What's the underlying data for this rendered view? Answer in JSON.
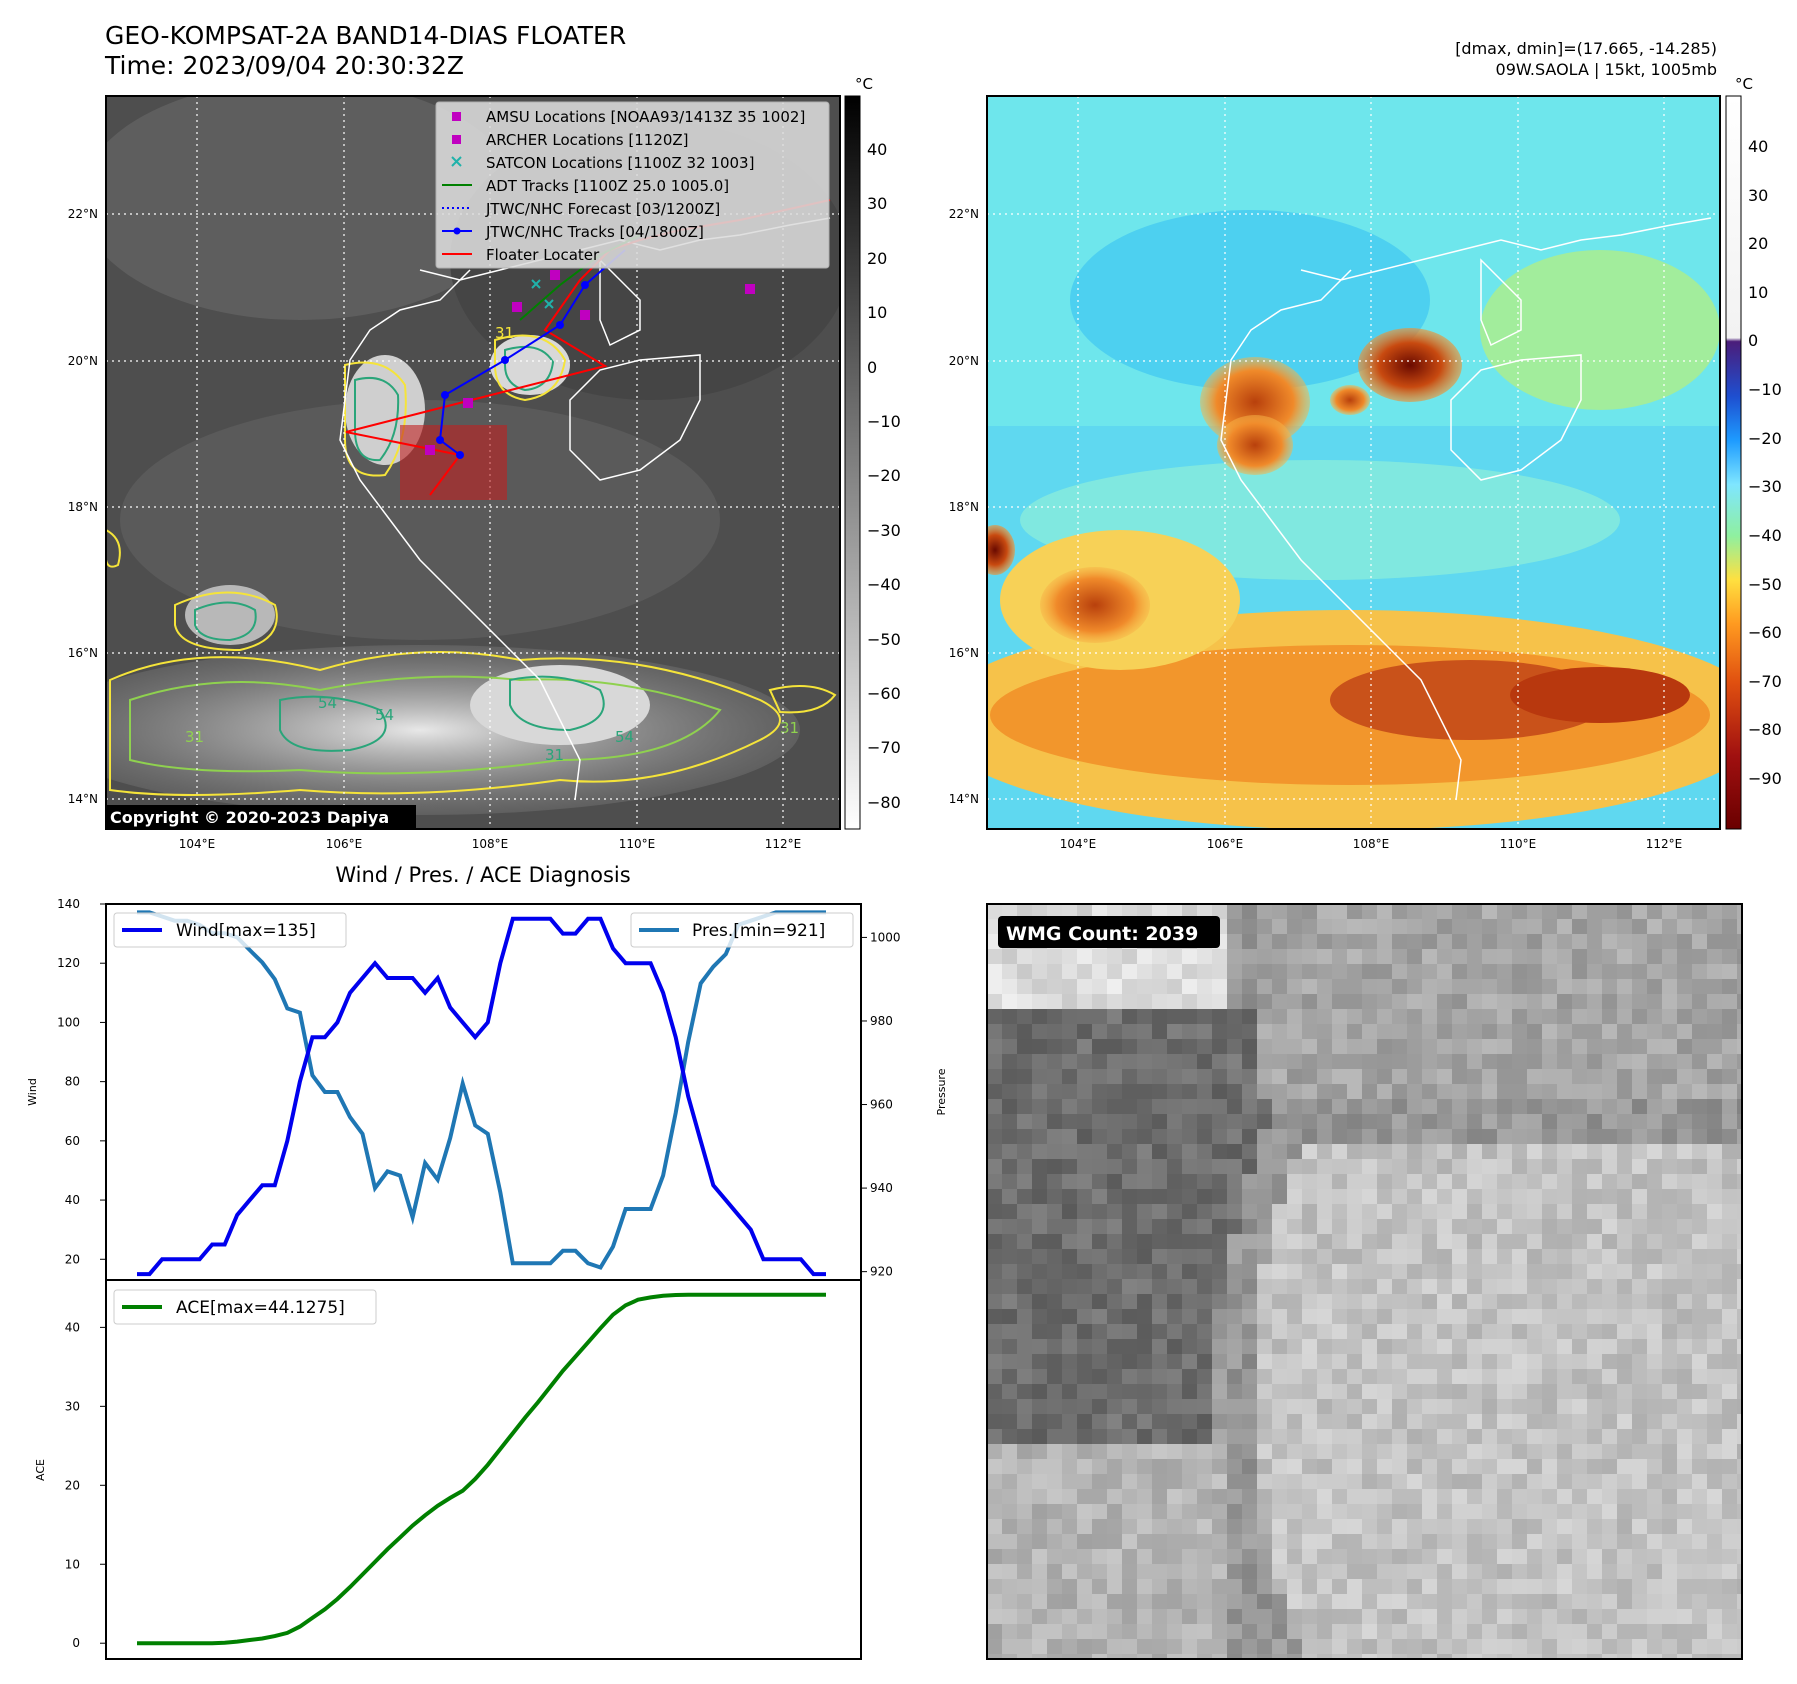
{
  "header": {
    "title": "GEO-KOMPSAT-2A BAND14-DIAS FLOATER",
    "time": "Time: 2023/09/04 20:30:32Z",
    "dmax_dmin": "[dmax, dmin]=(17.665, -14.285)",
    "storm": "09W.SAOLA | 15kt, 1005mb"
  },
  "map_panel": {
    "lat_labels": [
      "22°N",
      "20°N",
      "18°N",
      "16°N",
      "14°N"
    ],
    "lon_labels": [
      "104°E",
      "106°E",
      "108°E",
      "110°E",
      "112°E"
    ],
    "copyright": "Copyright © 2020-2023 Dapiya",
    "colorbar_unit": "°C",
    "colorbar_ticks": [
      "40",
      "30",
      "20",
      "10",
      "0",
      "−10",
      "−20",
      "−30",
      "−40",
      "−50",
      "−60",
      "−70",
      "−80"
    ],
    "contour_labels": [
      "54",
      "54",
      "54",
      "31",
      "31",
      "31",
      "31"
    ],
    "legend": [
      {
        "label": "AMSU Locations [NOAA93/1413Z 35 1002]",
        "marker": "square",
        "color": "#c000c0"
      },
      {
        "label": "ARCHER Locations [1120Z]",
        "marker": "square",
        "color": "#c000c0"
      },
      {
        "label": "SATCON Locations [1100Z 32 1003]",
        "marker": "x",
        "color": "#20b2aa"
      },
      {
        "label": "ADT Tracks [1100Z 25.0 1005.0]",
        "marker": "line",
        "color": "#008000"
      },
      {
        "label": "JTWC/NHC Forecast [03/1200Z]",
        "marker": "dotted",
        "color": "#0000ff"
      },
      {
        "label": "JTWC/NHC Tracks [04/1800Z]",
        "marker": "line-dot",
        "color": "#0000ff"
      },
      {
        "label": "Floater Locater",
        "marker": "line",
        "color": "#ff0000"
      }
    ]
  },
  "color_panel": {
    "lat_labels": [
      "22°N",
      "20°N",
      "18°N",
      "16°N",
      "14°N"
    ],
    "lon_labels": [
      "104°E",
      "106°E",
      "108°E",
      "110°E",
      "112°E"
    ],
    "colorbar_unit": "°C",
    "colorbar_ticks": [
      "40",
      "30",
      "20",
      "10",
      "0",
      "−10",
      "−20",
      "−30",
      "−40",
      "−50",
      "−60",
      "−70",
      "−80",
      "−90"
    ]
  },
  "diagnosis": {
    "title": "Wind / Pres. / ACE Diagnosis",
    "wind_ylabel": "Wind",
    "pres_ylabel": "Pressure",
    "ace_ylabel": "ACE",
    "wind_legend": "Wind[max=135]",
    "pres_legend": "Pres.[min=921]",
    "ace_legend": "ACE[max=44.1275]",
    "wind_ticks": [
      "140",
      "120",
      "100",
      "80",
      "60",
      "40",
      "20"
    ],
    "pres_ticks": [
      "1000",
      "980",
      "960",
      "940",
      "920"
    ],
    "ace_ticks": [
      "40",
      "30",
      "20",
      "10",
      "0"
    ]
  },
  "wmg_panel": {
    "label": "WMG Count: 2039"
  },
  "chart_data": [
    {
      "type": "line",
      "name": "wind-pressure",
      "ylim": [
        13,
        140
      ],
      "y2lim": [
        918,
        1008
      ],
      "series": [
        {
          "name": "Wind[max=135]",
          "color": "#0000ee",
          "values": [
            15,
            15,
            20,
            20,
            20,
            20,
            25,
            25,
            35,
            40,
            45,
            45,
            60,
            80,
            95,
            95,
            100,
            110,
            115,
            120,
            115,
            115,
            115,
            110,
            115,
            105,
            100,
            95,
            100,
            120,
            135,
            135,
            135,
            135,
            130,
            130,
            135,
            135,
            125,
            120,
            120,
            120,
            110,
            95,
            75,
            60,
            45,
            40,
            35,
            30,
            20,
            20,
            20,
            20,
            15,
            15
          ]
        },
        {
          "name": "Pres.[min=921]",
          "color": "#1f77b4",
          "values": [
            1006,
            1006,
            1005,
            1004,
            1004,
            1003,
            1001,
            1001,
            1000,
            997,
            994,
            990,
            983,
            982,
            967,
            963,
            963,
            957,
            953,
            940,
            944,
            943,
            933,
            946,
            942,
            952,
            965,
            955,
            953,
            939,
            922,
            922,
            922,
            922,
            925,
            925,
            922,
            921,
            926,
            935,
            935,
            935,
            943,
            958,
            975,
            989,
            993,
            996,
            1003,
            1004,
            1005,
            1006,
            1006,
            1006,
            1006,
            1006
          ]
        }
      ]
    },
    {
      "type": "line",
      "name": "ace",
      "ylim": [
        -2,
        46
      ],
      "series": [
        {
          "name": "ACE[max=44.1275]",
          "color": "#008000",
          "values": [
            0,
            0,
            0,
            0,
            0,
            0,
            0,
            0.05,
            0.2,
            0.4,
            0.6,
            0.9,
            1.3,
            2.1,
            3.2,
            4.3,
            5.6,
            7.1,
            8.7,
            10.3,
            11.9,
            13.4,
            14.9,
            16.2,
            17.4,
            18.4,
            19.3,
            20.8,
            22.6,
            24.6,
            26.6,
            28.6,
            30.5,
            32.5,
            34.5,
            36.3,
            38.1,
            39.9,
            41.6,
            42.8,
            43.5,
            43.8,
            44.0,
            44.1,
            44.1275,
            44.1275,
            44.1275,
            44.1275,
            44.1275,
            44.1275,
            44.1275,
            44.1275,
            44.1275,
            44.1275,
            44.1275,
            44.1275
          ]
        }
      ]
    }
  ]
}
